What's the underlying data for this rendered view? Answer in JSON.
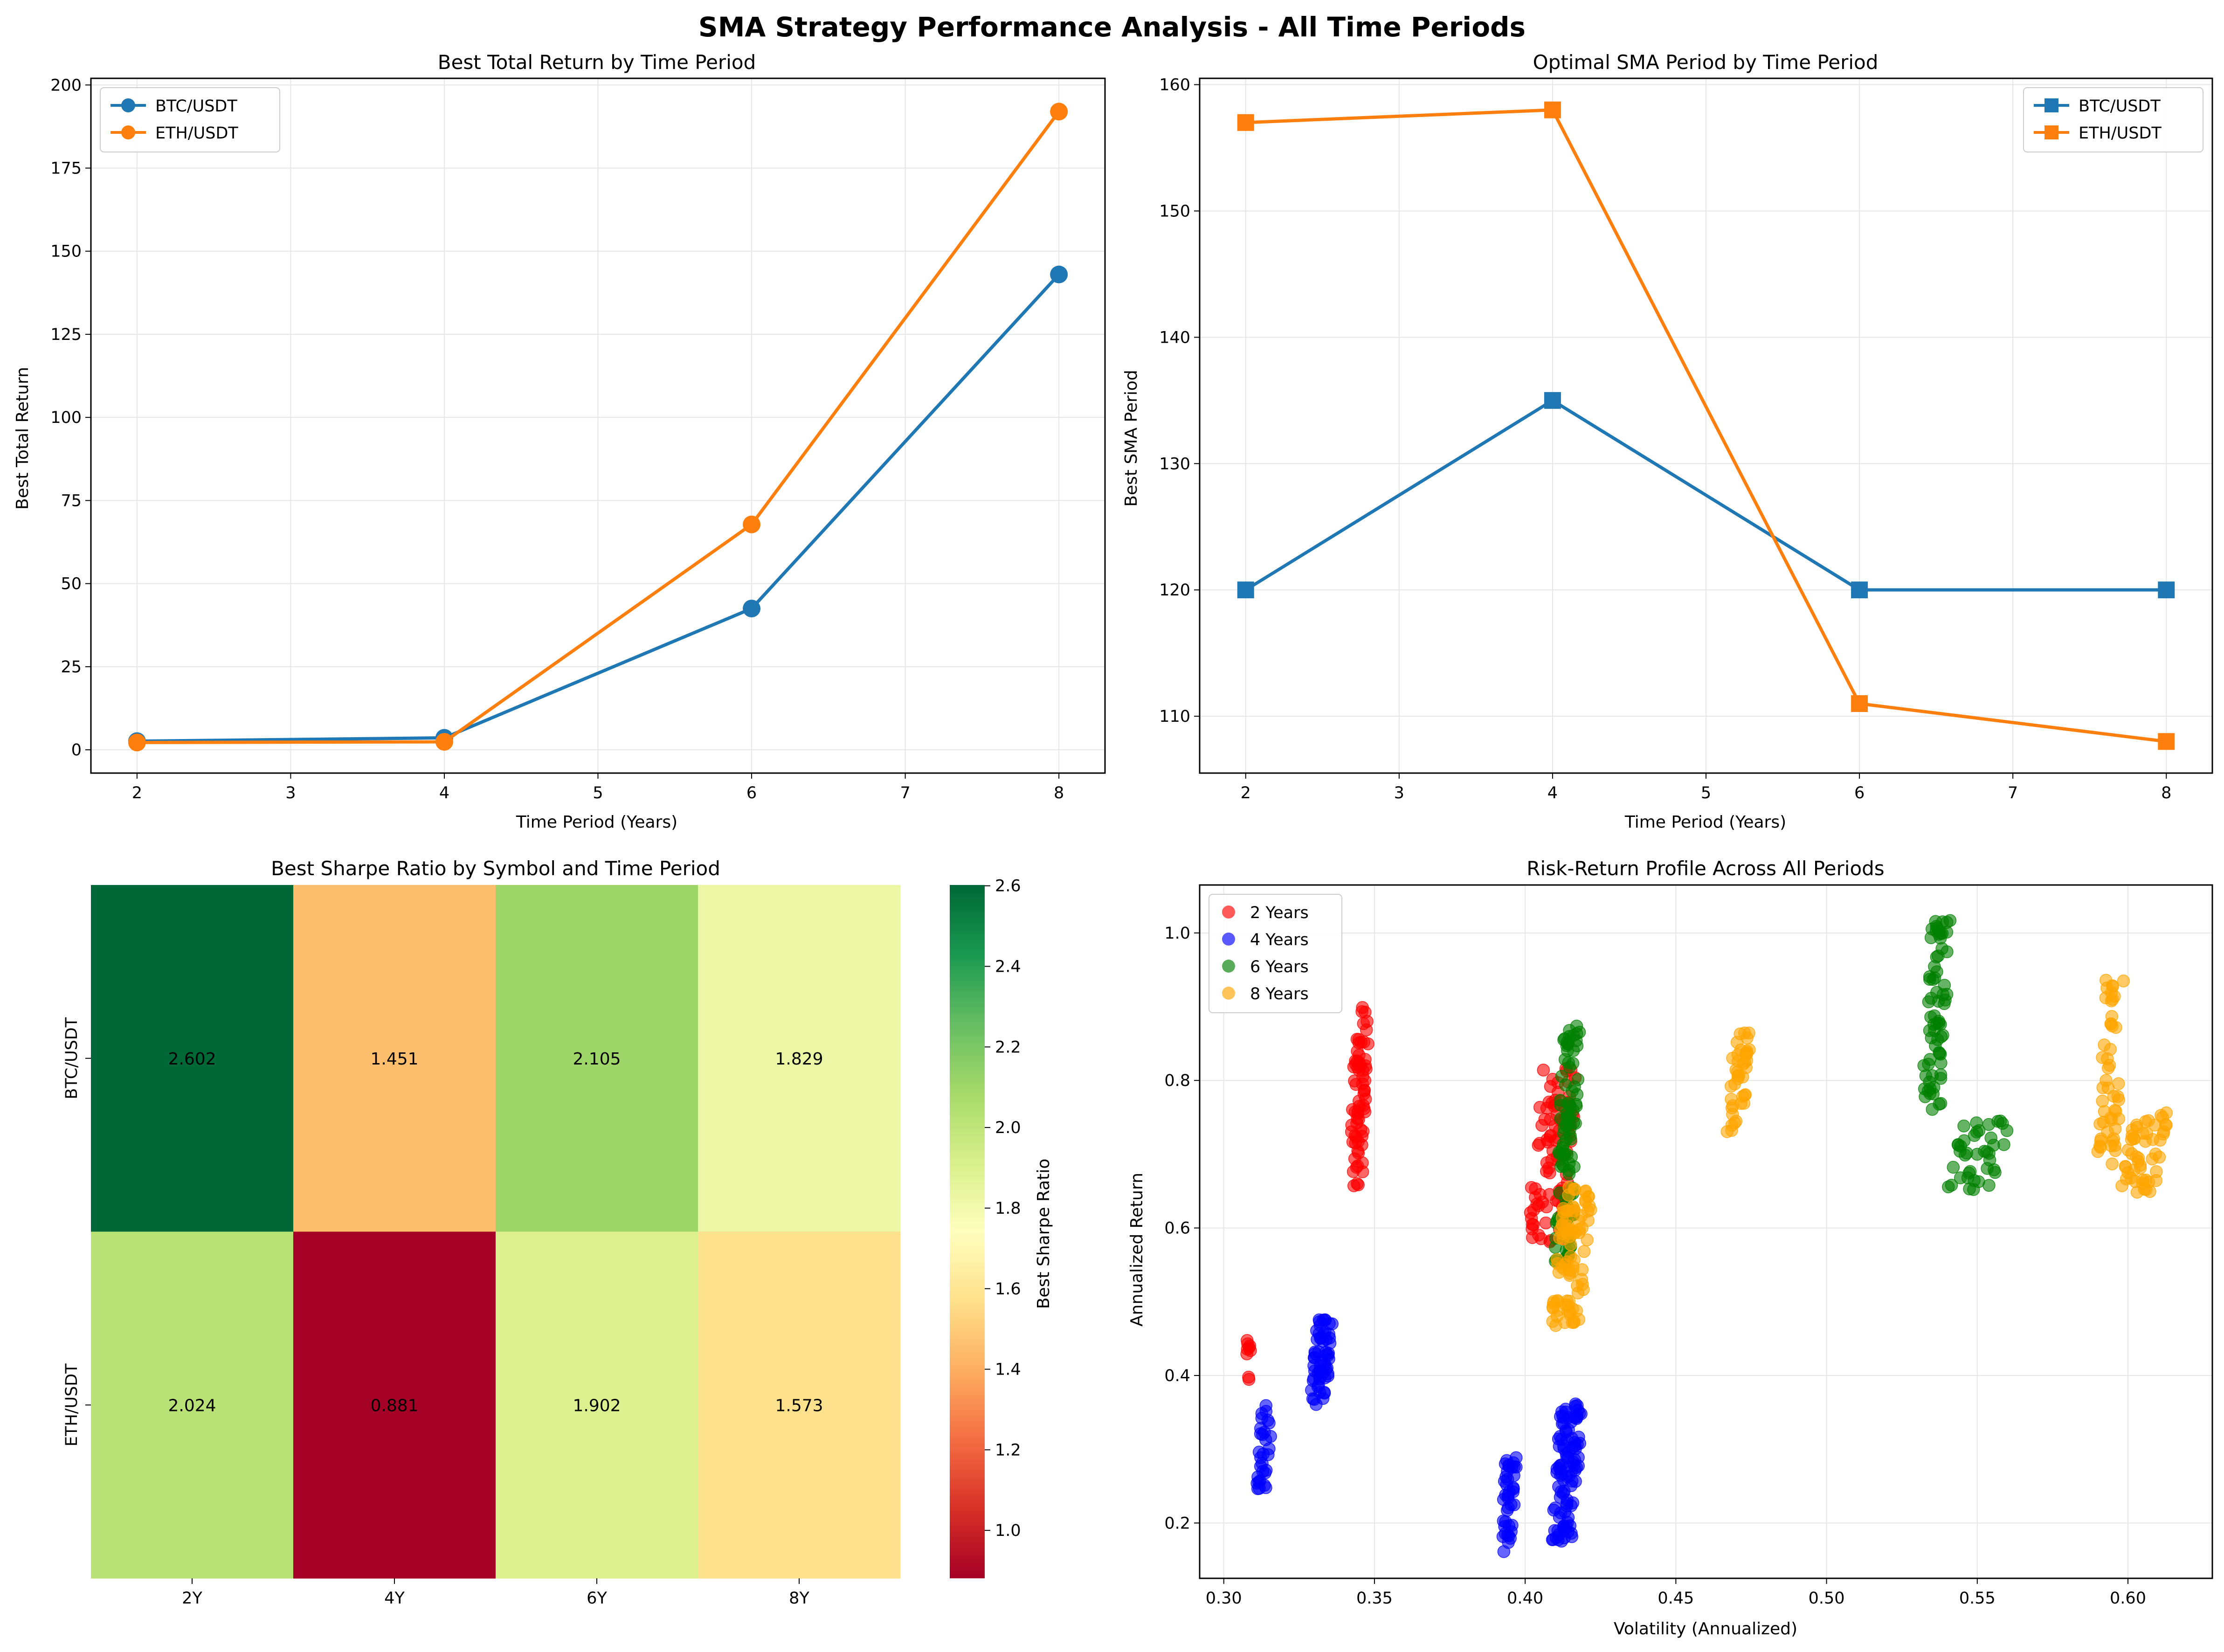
{
  "figure": {
    "title": "SMA Strategy Performance Analysis - All Time Periods"
  },
  "colors": {
    "blue": "#1f77b4",
    "orange": "#ff7f0e",
    "grid": "#e6e6e6",
    "scatter": [
      "#ff0000",
      "#0000ff",
      "#008000",
      "#ffa500"
    ]
  },
  "chart_data": [
    {
      "type": "line",
      "title": "Best Total Return by Time Period",
      "xlabel": "Time Period (Years)",
      "ylabel": "Best Total Return",
      "x": [
        2,
        4,
        6,
        8
      ],
      "xlim": [
        1.7,
        8.3
      ],
      "ylim": [
        -7,
        202
      ],
      "xticks": [
        2,
        3,
        4,
        5,
        6,
        7,
        8
      ],
      "yticks": [
        0,
        25,
        50,
        75,
        100,
        125,
        150,
        175,
        200
      ],
      "marker": "circle",
      "legend": "top-left",
      "grid": true,
      "series": [
        {
          "name": "BTC/USDT",
          "values": [
            2.6,
            3.6,
            42.5,
            143
          ]
        },
        {
          "name": "ETH/USDT",
          "values": [
            2.2,
            2.4,
            67.8,
            192
          ]
        }
      ]
    },
    {
      "type": "line",
      "title": "Optimal SMA Period by Time Period",
      "xlabel": "Time Period (Years)",
      "ylabel": "Best SMA Period",
      "x": [
        2,
        4,
        6,
        8
      ],
      "xlim": [
        1.7,
        8.3
      ],
      "ylim": [
        105.5,
        160.5
      ],
      "xticks": [
        2,
        3,
        4,
        5,
        6,
        7,
        8
      ],
      "yticks": [
        110,
        120,
        130,
        140,
        150,
        160
      ],
      "marker": "square",
      "legend": "top-right",
      "grid": true,
      "series": [
        {
          "name": "BTC/USDT",
          "values": [
            120,
            135,
            120,
            120
          ]
        },
        {
          "name": "ETH/USDT",
          "values": [
            157,
            158,
            111,
            108
          ]
        }
      ]
    },
    {
      "type": "heatmap",
      "title": "Best Sharpe Ratio by Symbol and Time Period",
      "rows": [
        "BTC/USDT",
        "ETH/USDT"
      ],
      "columns": [
        "2Y",
        "4Y",
        "6Y",
        "8Y"
      ],
      "values": [
        [
          2.602,
          1.451,
          2.105,
          1.829
        ],
        [
          2.024,
          0.881,
          1.902,
          1.573
        ]
      ],
      "cell_labels": [
        [
          "2.602",
          "1.451",
          "2.105",
          "1.829"
        ],
        [
          "2.024",
          "0.881",
          "1.902",
          "1.573"
        ]
      ],
      "colormap": "RdYlGn",
      "vmin": 0.881,
      "vmax": 2.602,
      "colorbar_label": "Best Sharpe Ratio",
      "colorbar_ticks": [
        1.0,
        1.2,
        1.4,
        1.6,
        1.8,
        2.0,
        2.2,
        2.4,
        2.6
      ],
      "colorbar_tick_labels": [
        "1.0",
        "1.2",
        "1.4",
        "1.6",
        "1.8",
        "2.0",
        "2.2",
        "2.4",
        "2.6"
      ]
    },
    {
      "type": "scatter",
      "title": "Risk-Return Profile Across All Periods",
      "xlabel": "Volatility (Annualized)",
      "ylabel": "Annualized Return",
      "xlim": [
        0.292,
        0.628
      ],
      "ylim": [
        0.125,
        1.065
      ],
      "xticks": [
        0.3,
        0.35,
        0.4,
        0.45,
        0.5,
        0.55,
        0.6
      ],
      "xtick_labels": [
        "0.30",
        "0.35",
        "0.40",
        "0.45",
        "0.50",
        "0.55",
        "0.60"
      ],
      "yticks": [
        0.2,
        0.4,
        0.6,
        0.8,
        1.0
      ],
      "ytick_labels": [
        "0.2",
        "0.4",
        "0.6",
        "0.8",
        "1.0"
      ],
      "legend": "top-left",
      "grid": true,
      "series": [
        {
          "name": "2 Years",
          "clusters": [
            {
              "x": [
                0.307,
                0.309
              ],
              "y": [
                0.38,
                0.465
              ],
              "n": 9
            },
            {
              "x": [
                0.342,
                0.348
              ],
              "y": [
                0.655,
                0.9
              ],
              "n": 70
            },
            {
              "x": [
                0.401,
                0.417
              ],
              "y": [
                0.575,
                0.82
              ],
              "n": 90
            }
          ]
        },
        {
          "name": "4 Years",
          "clusters": [
            {
              "x": [
                0.311,
                0.316
              ],
              "y": [
                0.245,
                0.36
              ],
              "n": 30
            },
            {
              "x": [
                0.329,
                0.336
              ],
              "y": [
                0.36,
                0.48
              ],
              "n": 60
            },
            {
              "x": [
                0.392,
                0.397
              ],
              "y": [
                0.16,
                0.29
              ],
              "n": 40
            },
            {
              "x": [
                0.409,
                0.419
              ],
              "y": [
                0.175,
                0.365
              ],
              "n": 100
            }
          ]
        },
        {
          "name": "6 Years",
          "clusters": [
            {
              "x": [
                0.41,
                0.418
              ],
              "y": [
                0.55,
                0.875
              ],
              "n": 100
            },
            {
              "x": [
                0.532,
                0.541
              ],
              "y": [
                0.76,
                1.025
              ],
              "n": 70
            },
            {
              "x": [
                0.54,
                0.561
              ],
              "y": [
                0.65,
                0.75
              ],
              "n": 40
            }
          ]
        },
        {
          "name": "8 Years",
          "clusters": [
            {
              "x": [
                0.409,
                0.422
              ],
              "y": [
                0.465,
                0.655
              ],
              "n": 90
            },
            {
              "x": [
                0.467,
                0.475
              ],
              "y": [
                0.73,
                0.865
              ],
              "n": 40
            },
            {
              "x": [
                0.59,
                0.599
              ],
              "y": [
                0.675,
                0.94
              ],
              "n": 50
            },
            {
              "x": [
                0.598,
                0.613
              ],
              "y": [
                0.645,
                0.76
              ],
              "n": 50
            }
          ]
        }
      ]
    }
  ]
}
